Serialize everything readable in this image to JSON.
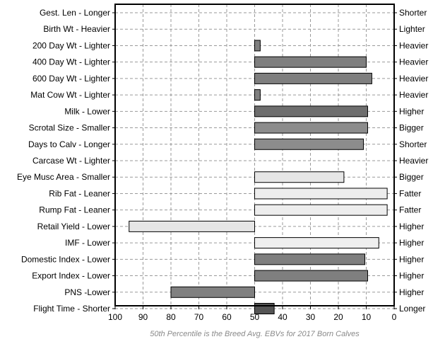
{
  "chart_data": {
    "type": "bar",
    "orientation": "horizontal",
    "baseline": 50,
    "xlim": [
      100,
      0
    ],
    "x_ticks": [
      100,
      90,
      80,
      70,
      60,
      50,
      40,
      30,
      20,
      10,
      0
    ],
    "grid": true,
    "rows": [
      {
        "left_label": "Gest. Len - Longer",
        "right_label": "Shorter",
        "value": null,
        "color": "#ffffff"
      },
      {
        "left_label": "Birth Wt - Heavier",
        "right_label": "Lighter",
        "value": null,
        "color": "#ffffff"
      },
      {
        "left_label": "200 Day Wt - Lighter",
        "right_label": "Heavier",
        "value": 48,
        "color": "#7f7f7f"
      },
      {
        "left_label": "400 Day Wt - Lighter",
        "right_label": "Heavier",
        "value": 10,
        "color": "#7f7f7f"
      },
      {
        "left_label": "600 Day Wt - Lighter",
        "right_label": "Heavier",
        "value": 8,
        "color": "#7f7f7f"
      },
      {
        "left_label": "Mat Cow Wt - Lighter",
        "right_label": "Heavier",
        "value": 48,
        "color": "#7f7f7f"
      },
      {
        "left_label": "Milk - Lower",
        "right_label": "Higher",
        "value": 9.5,
        "color": "#6e6e6e"
      },
      {
        "left_label": "Scrotal Size - Smaller",
        "right_label": "Bigger",
        "value": 9.5,
        "color": "#8c8c8c"
      },
      {
        "left_label": "Days to Calv - Longer",
        "right_label": "Shorter",
        "value": 11,
        "color": "#8c8c8c"
      },
      {
        "left_label": "Carcase Wt - Lighter",
        "right_label": "Heavier",
        "value": null,
        "color": "#ffffff"
      },
      {
        "left_label": "Eye Musc Area - Smaller",
        "right_label": "Bigger",
        "value": 18,
        "color": "#e6e6e6"
      },
      {
        "left_label": "Rib Fat - Leaner",
        "right_label": "Fatter",
        "value": 2.5,
        "color": "#ededed"
      },
      {
        "left_label": "Rump Fat - Leaner",
        "right_label": "Fatter",
        "value": 2.5,
        "color": "#ededed"
      },
      {
        "left_label": "Retail Yield - Lower",
        "right_label": "Higher",
        "value": 95,
        "color": "#e6e6e6"
      },
      {
        "left_label": "IMF - Lower",
        "right_label": "Higher",
        "value": 5.5,
        "color": "#efefef"
      },
      {
        "left_label": "Domestic Index - Lower",
        "right_label": "Higher",
        "value": 10.5,
        "color": "#7f7f7f"
      },
      {
        "left_label": "Export Index - Lower",
        "right_label": "Higher",
        "value": 9.5,
        "color": "#7f7f7f"
      },
      {
        "left_label": "PNS -Lower",
        "right_label": "Higher",
        "value": 80,
        "color": "#808080"
      },
      {
        "left_label": "Flight Time - Shorter",
        "right_label": "Longer",
        "value": 43,
        "color": "#555555"
      }
    ],
    "footnote": "50th Percentile is the Breed Avg. EBVs for 2017 Born Calves"
  }
}
